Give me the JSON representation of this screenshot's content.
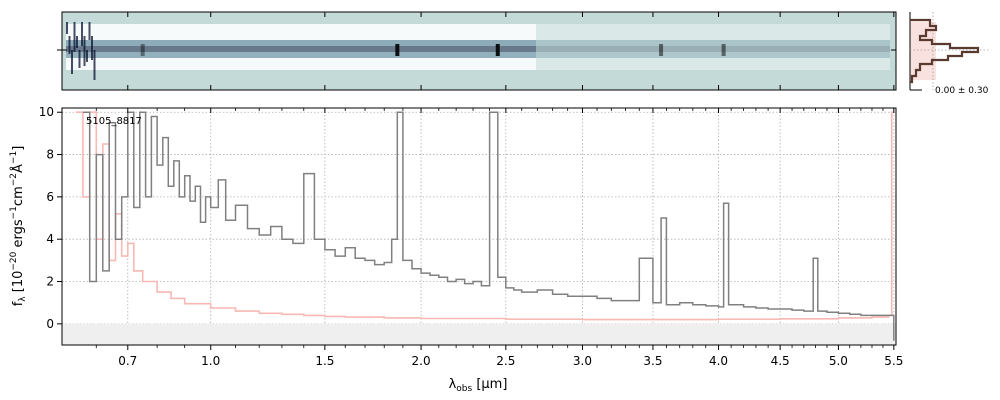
{
  "chart_data": [
    {
      "type": "heatmap",
      "panel": "2d-spectrum",
      "description_from_pixels": "two-dimensional spectrum trace, blue-gray colormap on light teal background",
      "colors": {
        "background": "#c4dad9",
        "trace_dark": "#1e2a4a",
        "trace_mid": "#7f9fb0",
        "trace_light": "#ffffff"
      }
    },
    {
      "type": "line",
      "panel": "spatial-profile",
      "annotation": "0.00 ± 0.30",
      "colors": {
        "profile": "#5a3a2e",
        "shade": "#f4c8c4"
      }
    },
    {
      "type": "line",
      "panel": "1d-spectrum",
      "label": "5105_8817",
      "xlabel_main": "λ",
      "xlabel_sub": "obs",
      "xlabel_unit": " [μm]",
      "ylabel": "f_λ [10^-20 ergs^-1cm^-2Å^-1]",
      "xlim": [
        0.5,
        5.52
      ],
      "ylim": [
        -1.0,
        10.2
      ],
      "x_scale": "linear in wavelength^0.5 (non-linear tick spacing)",
      "x_ticks": [
        {
          "value": 0.7,
          "label": "0.7"
        },
        {
          "value": 1.0,
          "label": "1.0"
        },
        {
          "value": 1.5,
          "label": "1.5"
        },
        {
          "value": 2.0,
          "label": "2.0"
        },
        {
          "value": 2.5,
          "label": "2.5"
        },
        {
          "value": 3.0,
          "label": "3.0"
        },
        {
          "value": 3.5,
          "label": "3.5"
        },
        {
          "value": 4.0,
          "label": "4.0"
        },
        {
          "value": 4.5,
          "label": "4.5"
        },
        {
          "value": 5.0,
          "label": "5.0"
        },
        {
          "value": 5.5,
          "label": "5.5"
        }
      ],
      "y_ticks": [
        0,
        2,
        4,
        6,
        8,
        10
      ],
      "grid": true,
      "colors": {
        "flux": "#808080",
        "error": "#f8b8b4",
        "zero_band": "#efefef"
      },
      "series": [
        {
          "role": "flux",
          "x": [
            0.56,
            0.58,
            0.6,
            0.62,
            0.64,
            0.66,
            0.68,
            0.7,
            0.72,
            0.74,
            0.76,
            0.78,
            0.8,
            0.82,
            0.84,
            0.86,
            0.88,
            0.9,
            0.92,
            0.94,
            0.96,
            0.98,
            1.0,
            1.03,
            1.06,
            1.1,
            1.15,
            1.2,
            1.25,
            1.3,
            1.35,
            1.4,
            1.45,
            1.5,
            1.55,
            1.6,
            1.65,
            1.7,
            1.75,
            1.8,
            1.84,
            1.87,
            1.9,
            1.95,
            2.0,
            2.05,
            2.1,
            2.15,
            2.2,
            2.25,
            2.3,
            2.35,
            2.4,
            2.45,
            2.5,
            2.55,
            2.6,
            2.7,
            2.8,
            2.9,
            3.0,
            3.1,
            3.2,
            3.3,
            3.4,
            3.5,
            3.56,
            3.6,
            3.7,
            3.8,
            3.9,
            4.0,
            4.04,
            4.08,
            4.2,
            4.3,
            4.4,
            4.5,
            4.6,
            4.7,
            4.78,
            4.82,
            4.9,
            5.0,
            5.1,
            5.2,
            5.3,
            5.4,
            5.47,
            5.5
          ],
          "y": [
            10.0,
            2.0,
            8.0,
            2.5,
            9.5,
            4.0,
            6.0,
            10.0,
            5.5,
            10.0,
            6.0,
            9.8,
            7.5,
            8.8,
            6.5,
            7.7,
            6.0,
            7.0,
            5.8,
            6.5,
            4.8,
            6.0,
            5.5,
            6.8,
            4.9,
            5.6,
            4.5,
            4.2,
            4.6,
            4.0,
            3.8,
            7.1,
            4.0,
            3.5,
            3.2,
            3.6,
            3.1,
            3.0,
            2.8,
            2.9,
            4.0,
            10.0,
            3.0,
            2.6,
            2.4,
            2.3,
            2.2,
            2.0,
            2.1,
            1.9,
            2.0,
            1.8,
            10.0,
            2.2,
            1.7,
            1.6,
            1.5,
            1.6,
            1.4,
            1.3,
            1.3,
            1.2,
            1.1,
            1.1,
            3.1,
            1.0,
            5.0,
            0.9,
            1.0,
            0.9,
            0.85,
            0.8,
            5.7,
            0.9,
            0.8,
            0.75,
            0.7,
            0.7,
            0.65,
            0.6,
            3.1,
            0.6,
            0.55,
            0.5,
            0.45,
            0.4,
            0.4,
            0.4,
            0.4,
            -0.8
          ]
        },
        {
          "role": "error",
          "x": [
            0.54,
            0.56,
            0.58,
            0.6,
            0.62,
            0.64,
            0.66,
            0.68,
            0.7,
            0.72,
            0.75,
            0.8,
            0.85,
            0.9,
            1.0,
            1.1,
            1.2,
            1.3,
            1.4,
            1.5,
            1.6,
            1.8,
            2.0,
            2.5,
            3.0,
            3.5,
            4.0,
            4.5,
            5.0,
            5.3,
            5.45,
            5.48,
            5.5
          ],
          "y": [
            10.0,
            6.0,
            10.0,
            4.0,
            8.5,
            3.0,
            5.2,
            3.2,
            3.8,
            2.5,
            2.0,
            1.5,
            1.2,
            0.95,
            0.75,
            0.6,
            0.5,
            0.45,
            0.4,
            0.35,
            0.32,
            0.28,
            0.25,
            0.22,
            0.2,
            0.2,
            0.22,
            0.24,
            0.28,
            0.32,
            0.4,
            10.0,
            10.0
          ]
        }
      ]
    }
  ]
}
